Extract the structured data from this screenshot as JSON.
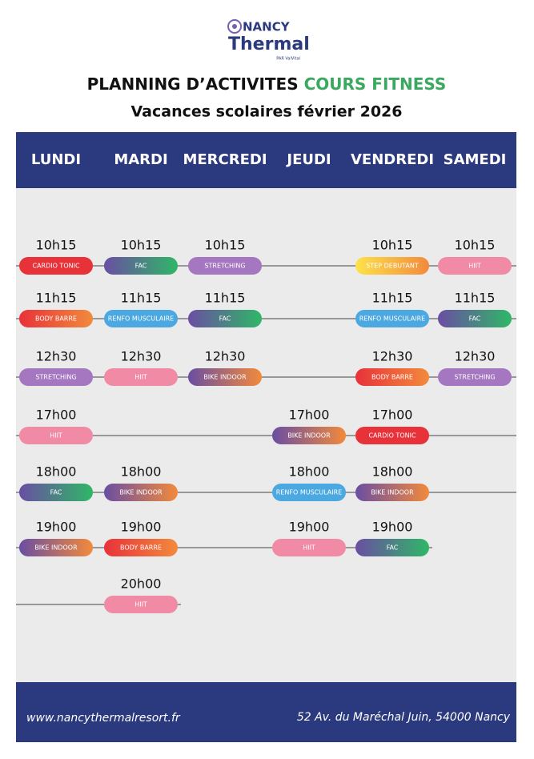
{
  "logo": {
    "line1": "NANCY",
    "line2": "Thermal",
    "line3": "PAR ValVital"
  },
  "header": {
    "title": "PLANNING D’ACTIVITES ",
    "title_highlight": "COURS FITNESS",
    "subtitle": "Vacances scolaires février 2026"
  },
  "days": [
    "LUNDI",
    "MARDI",
    "MERCREDI",
    "JEUDI",
    "VENDREDI",
    "SAMEDI"
  ],
  "rows": [
    [
      {
        "time": "10h15",
        "label": "CARDIO TONIC",
        "colors": [
          "#e8323a",
          "#e8323a"
        ]
      },
      {
        "time": "10h15",
        "label": "FAC",
        "colors": [
          "#6a4ea2",
          "#2fb767"
        ]
      },
      {
        "time": "10h15",
        "label": "STRETCHING",
        "colors": [
          "#a477c0",
          "#a477c0"
        ]
      },
      null,
      {
        "time": "10h15",
        "label": "STEP DEBUTANT",
        "colors": [
          "#fde24a",
          "#f28a3c"
        ]
      },
      {
        "time": "10h15",
        "label": "HIIT",
        "colors": [
          "#f18aa5",
          "#f18aa5"
        ]
      }
    ],
    [
      {
        "time": "11h15",
        "label": "BODY BARRE",
        "colors": [
          "#e8323a",
          "#f28a3c"
        ]
      },
      {
        "time": "11h15",
        "label": "RENFO MUSCULAIRE",
        "colors": [
          "#4ba8e0",
          "#4ba8e0"
        ]
      },
      {
        "time": "11h15",
        "label": "FAC",
        "colors": [
          "#6a4ea2",
          "#2fb767"
        ]
      },
      null,
      {
        "time": "11h15",
        "label": "RENFO MUSCULAIRE",
        "colors": [
          "#4ba8e0",
          "#4ba8e0"
        ]
      },
      {
        "time": "11h15",
        "label": "FAC",
        "colors": [
          "#6a4ea2",
          "#2fb767"
        ]
      }
    ],
    [
      {
        "time": "12h30",
        "label": "STRETCHING",
        "colors": [
          "#a477c0",
          "#a477c0"
        ]
      },
      {
        "time": "12h30",
        "label": "HIIT",
        "colors": [
          "#f18aa5",
          "#f18aa5"
        ]
      },
      {
        "time": "12h30",
        "label": "BIKE INDOOR",
        "colors": [
          "#6a4ea2",
          "#f28a3c"
        ]
      },
      null,
      {
        "time": "12h30",
        "label": "BODY BARRE",
        "colors": [
          "#e8323a",
          "#f28a3c"
        ]
      },
      {
        "time": "12h30",
        "label": "STRETCHING",
        "colors": [
          "#a477c0",
          "#a477c0"
        ]
      }
    ],
    [
      {
        "time": "17h00",
        "label": "HIIT",
        "colors": [
          "#f18aa5",
          "#f18aa5"
        ]
      },
      null,
      null,
      {
        "time": "17h00",
        "label": "BIKE INDOOR",
        "colors": [
          "#6a4ea2",
          "#f28a3c"
        ]
      },
      {
        "time": "17h00",
        "label": "CARDIO TONIC",
        "colors": [
          "#e8323a",
          "#e8323a"
        ]
      },
      null
    ],
    [
      {
        "time": "18h00",
        "label": "FAC",
        "colors": [
          "#6a4ea2",
          "#2fb767"
        ]
      },
      {
        "time": "18h00",
        "label": "BIKE INDOOR",
        "colors": [
          "#6a4ea2",
          "#f28a3c"
        ]
      },
      null,
      {
        "time": "18h00",
        "label": "RENFO MUSCULAIRE",
        "colors": [
          "#4ba8e0",
          "#4ba8e0"
        ]
      },
      {
        "time": "18h00",
        "label": "BIKE INDOOR",
        "colors": [
          "#6a4ea2",
          "#f28a3c"
        ]
      },
      null
    ],
    [
      {
        "time": "19h00",
        "label": "BIKE INDOOR",
        "colors": [
          "#6a4ea2",
          "#f28a3c"
        ]
      },
      {
        "time": "19h00",
        "label": "BODY BARRE",
        "colors": [
          "#e8323a",
          "#f28a3c"
        ]
      },
      null,
      {
        "time": "19h00",
        "label": "HIIT",
        "colors": [
          "#f18aa5",
          "#f18aa5"
        ]
      },
      {
        "time": "19h00",
        "label": "FAC",
        "colors": [
          "#6a4ea2",
          "#2fb767"
        ]
      },
      null
    ],
    [
      null,
      {
        "time": "20h00",
        "label": "HIIT",
        "colors": [
          "#f18aa5",
          "#f18aa5"
        ]
      },
      null,
      null,
      null,
      null
    ]
  ],
  "footer": {
    "website": "www.nancythermalresort.fr",
    "address": "52 Av. du Maréchal Juin, 54000 Nancy"
  }
}
